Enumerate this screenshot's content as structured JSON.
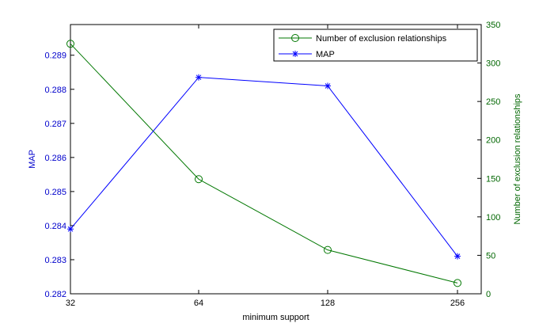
{
  "chart_data": {
    "type": "line",
    "xlabel": "minimum support",
    "categories": [
      "32",
      "64",
      "128",
      "256"
    ],
    "left_axis": {
      "label": "MAP",
      "ylim": [
        0.282,
        0.2899
      ],
      "ticks": [
        0.282,
        0.283,
        0.284,
        0.285,
        0.286,
        0.287,
        0.288,
        0.289
      ],
      "tick_labels": [
        "0.282",
        "0.283",
        "0.284",
        "0.285",
        "0.286",
        "0.287",
        "0.288",
        "0.289"
      ],
      "color": "#0000cc"
    },
    "right_axis": {
      "label": "Number of exclusion relationships",
      "ylim": [
        0,
        350
      ],
      "ticks": [
        0,
        50,
        100,
        150,
        200,
        250,
        300,
        350
      ],
      "tick_labels": [
        "0",
        "50",
        "100",
        "150",
        "200",
        "250",
        "300",
        "350"
      ],
      "color": "#006600"
    },
    "series": [
      {
        "name": "Number of exclusion relationships",
        "axis": "right",
        "marker": "circle",
        "color": "#007700",
        "values": [
          325,
          149,
          57,
          14
        ]
      },
      {
        "name": "MAP",
        "axis": "left",
        "marker": "star",
        "color": "#0000ff",
        "values": [
          0.2839,
          0.28835,
          0.2881,
          0.2831
        ]
      }
    ],
    "legend_position": "top-right",
    "grid": false
  }
}
